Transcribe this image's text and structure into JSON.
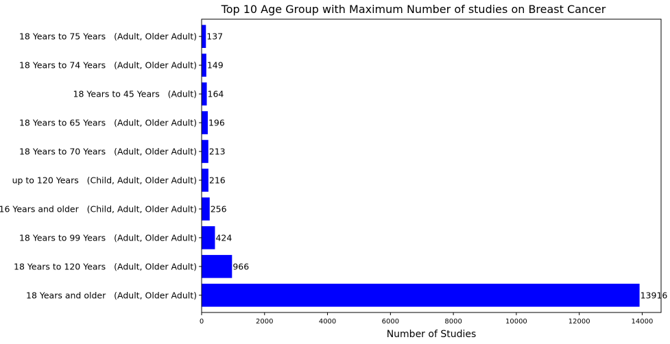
{
  "chart_data": {
    "type": "bar",
    "orientation": "horizontal",
    "title": "Top 10 Age Group with Maximum Number of studies on Breast Cancer",
    "xlabel": "Number of Studies",
    "ylabel": "",
    "categories": [
      "18 Years and older   (Adult, Older Adult)",
      "18 Years to 120 Years   (Adult, Older Adult)",
      "18 Years to 99 Years   (Adult, Older Adult)",
      "16 Years and older   (Child, Adult, Older Adult)",
      "up to 120 Years   (Child, Adult, Older Adult)",
      "18 Years to 70 Years   (Adult, Older Adult)",
      "18 Years to 65 Years   (Adult, Older Adult)",
      "18 Years to 45 Years   (Adult)",
      "18 Years to 74 Years   (Adult, Older Adult)",
      "18 Years to 75 Years   (Adult, Older Adult)"
    ],
    "values": [
      13916,
      966,
      424,
      256,
      216,
      213,
      196,
      164,
      149,
      137
    ],
    "data_labels": [
      "13916",
      "966",
      "424",
      "256",
      "216",
      "213",
      "196",
      "164",
      "149",
      "137"
    ],
    "xlim": [
      0,
      14600
    ],
    "xticks": [
      0,
      2000,
      4000,
      6000,
      8000,
      10000,
      12000,
      14000
    ],
    "xtick_labels": [
      "0",
      "2000",
      "4000",
      "6000",
      "8000",
      "10000",
      "12000",
      "14000"
    ],
    "grid": false,
    "bar_color": "#0000ff"
  }
}
